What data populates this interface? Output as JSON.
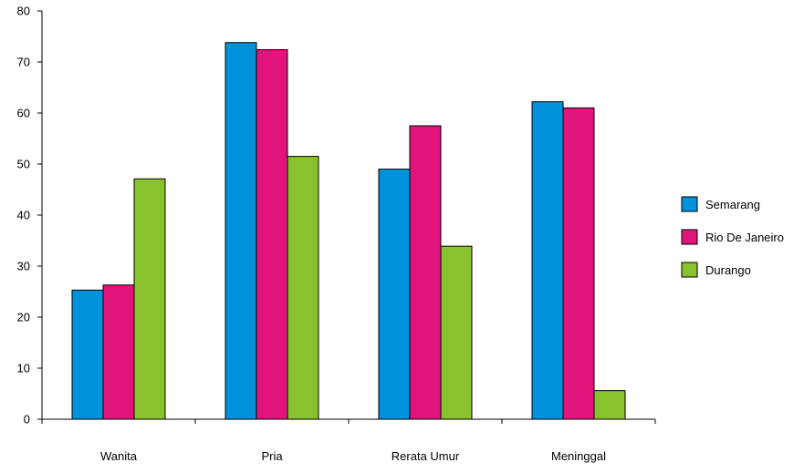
{
  "chart_data": {
    "type": "bar",
    "title": "",
    "xlabel": "",
    "ylabel": "",
    "categories": [
      "Wanita",
      "Pria",
      "Rerata Umur",
      "Meninggal"
    ],
    "series": [
      {
        "name": "Semarang",
        "color": "#0091db",
        "values": [
          25.3,
          73.8,
          49.0,
          62.2
        ]
      },
      {
        "name": "Rio De Janeiro",
        "color": "#e1147c",
        "values": [
          26.3,
          72.4,
          57.5,
          61.0
        ]
      },
      {
        "name": "Durango",
        "color": "#88c22c",
        "values": [
          47.1,
          51.5,
          33.9,
          5.6
        ]
      }
    ],
    "ylim": [
      0,
      80
    ],
    "yticks": [
      0,
      10,
      20,
      30,
      40,
      50,
      60,
      70,
      80
    ],
    "grid": false,
    "legend_position": "right"
  }
}
